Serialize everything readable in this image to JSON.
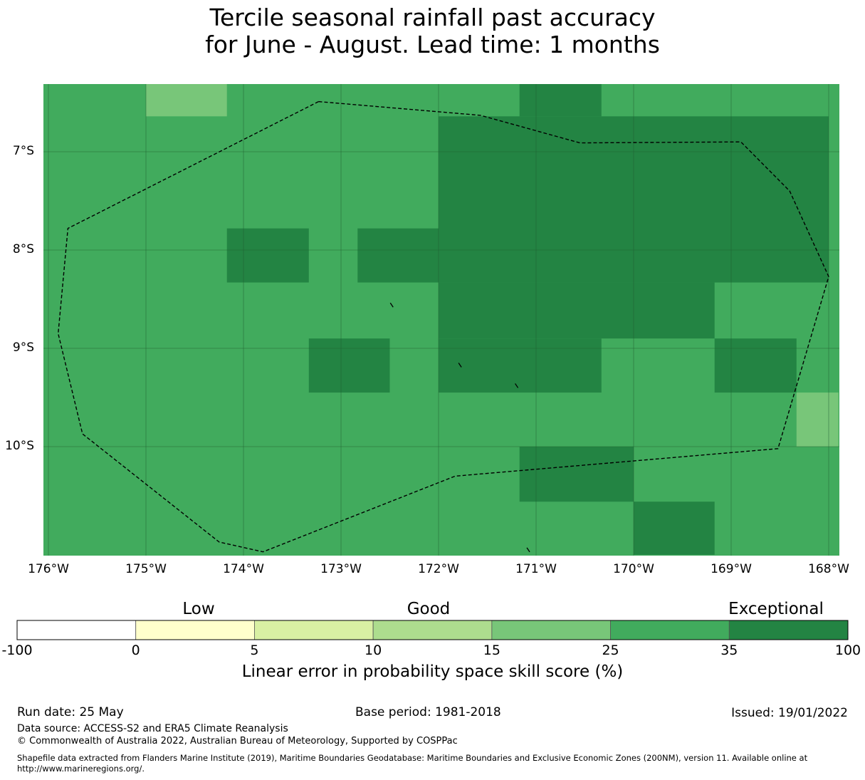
{
  "title": {
    "line1": "Tercile seasonal rainfall past accuracy",
    "line2": "for June - August. Lead time: 1 months"
  },
  "map": {
    "lon_range": [
      -176,
      -168
    ],
    "lat_range": [
      -11.1,
      -6.3
    ],
    "cell_degrees": 0.833,
    "lat_ticks": [
      {
        "value": -7,
        "label": "7°S"
      },
      {
        "value": -8,
        "label": "8°S"
      },
      {
        "value": -9,
        "label": "9°S"
      },
      {
        "value": -10,
        "label": "10°S"
      }
    ],
    "lon_ticks": [
      {
        "value": -176,
        "label": "176°W"
      },
      {
        "value": -175,
        "label": "175°W"
      },
      {
        "value": -174,
        "label": "174°W"
      },
      {
        "value": -173,
        "label": "173°W"
      },
      {
        "value": -172,
        "label": "172°W"
      },
      {
        "value": -171,
        "label": "171°W"
      },
      {
        "value": -170,
        "label": "170°W"
      },
      {
        "value": -169,
        "label": "169°W"
      },
      {
        "value": -168,
        "label": "168°W"
      }
    ],
    "background_category": "25-35",
    "cells": [
      {
        "lon0": -175,
        "lon1": -174.17,
        "lat0": -6.64,
        "lat1": -6.3,
        "category": "15-25"
      },
      {
        "lon0": -171.17,
        "lon1": -170.33,
        "lat0": -6.64,
        "lat1": -6.3,
        "category": "35-100"
      },
      {
        "lon0": -172,
        "lon1": -168,
        "lat0": -8.33,
        "lat1": -6.64,
        "category": "35-100"
      },
      {
        "lon0": -174.17,
        "lon1": -173.33,
        "lat0": -8.33,
        "lat1": -7.78,
        "category": "35-100"
      },
      {
        "lon0": -172.83,
        "lon1": -172,
        "lat0": -8.33,
        "lat1": -7.78,
        "category": "35-100"
      },
      {
        "lon0": -172,
        "lon1": -169.17,
        "lat0": -8.9,
        "lat1": -8.33,
        "category": "35-100"
      },
      {
        "lon0": -172,
        "lon1": -170.33,
        "lat0": -9.45,
        "lat1": -8.9,
        "category": "35-100"
      },
      {
        "lon0": -173.33,
        "lon1": -172.5,
        "lat0": -9.45,
        "lat1": -8.9,
        "category": "35-100"
      },
      {
        "lon0": -169.17,
        "lon1": -168.33,
        "lat0": -9.45,
        "lat1": -8.9,
        "category": "35-100"
      },
      {
        "lon0": -168.33,
        "lon1": -167.9,
        "lat0": -10,
        "lat1": -9.45,
        "category": "15-25"
      },
      {
        "lon0": -171.17,
        "lon1": -170,
        "lat0": -10.56,
        "lat1": -10,
        "category": "35-100"
      },
      {
        "lon0": -170,
        "lon1": -169.17,
        "lat0": -11.1,
        "lat1": -10.56,
        "category": "35-100"
      }
    ],
    "eez_boundary": [
      [
        -173.23,
        -6.49
      ],
      [
        -171.57,
        -6.63
      ],
      [
        -170.55,
        -6.91
      ],
      [
        -168.9,
        -6.9
      ],
      [
        -168.4,
        -7.4
      ],
      [
        -168.0,
        -8.27
      ],
      [
        -168.52,
        -10.02
      ],
      [
        -171.83,
        -10.3
      ],
      [
        -173.8,
        -11.07
      ],
      [
        -174.25,
        -10.97
      ],
      [
        -175.65,
        -9.87
      ],
      [
        -175.9,
        -8.85
      ],
      [
        -175.8,
        -7.78
      ],
      [
        -173.23,
        -6.49
      ]
    ],
    "islands": [
      {
        "lon": -172.48,
        "lat": -8.56
      },
      {
        "lon": -171.78,
        "lat": -9.17
      },
      {
        "lon": -171.2,
        "lat": -9.38
      },
      {
        "lon": -171.08,
        "lat": -11.05
      }
    ]
  },
  "colorbar": {
    "categories_text": [
      "Low",
      "Good",
      "Exceptional"
    ],
    "category_positions": [
      0.1,
      0.5,
      0.9
    ],
    "segments": [
      {
        "key": "-100-0",
        "color": "#ffffff"
      },
      {
        "key": "0-5",
        "color": "#ffffcc"
      },
      {
        "key": "5-10",
        "color": "#d9f0a3"
      },
      {
        "key": "10-15",
        "color": "#addd8e"
      },
      {
        "key": "15-25",
        "color": "#78c679"
      },
      {
        "key": "25-35",
        "color": "#41ab5d"
      },
      {
        "key": "35-100",
        "color": "#238443"
      }
    ],
    "ticks": [
      "-100",
      "0",
      "5",
      "10",
      "15",
      "25",
      "35",
      "100"
    ],
    "label": "Linear error in probability space skill score (%)"
  },
  "footer": {
    "run_date": "Run date: 25 May",
    "base_period": "Base period: 1981-2018",
    "issued": "Issued: 19/01/2022",
    "data_source": "Data source: ACCESS-S2 and ERA5 Climate Reanalysis",
    "copyright": "© Commonwealth of Australia 2022, Australian Bureau of Meteorology, Supported by COSPPac",
    "shapefile_line1": "Shapefile data extracted from Flanders Marine Institute (2019), Maritime Boundaries Geodatabase: Maritime Boundaries and Exclusive Economic Zones (200NM), version 11. Available online at",
    "shapefile_line2": "http://www.marineregions.org/."
  }
}
